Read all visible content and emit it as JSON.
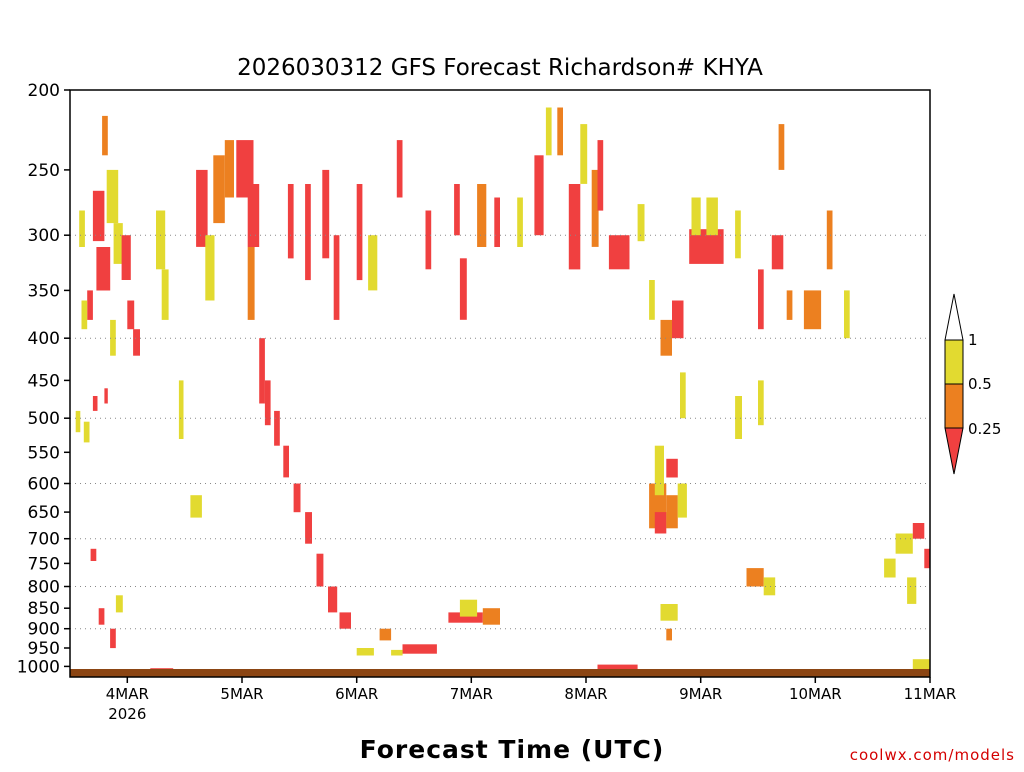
{
  "chart_data": {
    "type": "heatmap",
    "title": "2026030312 GFS Forecast Richardson# KHYA",
    "xlabel": "Forecast Time (UTC)",
    "ylabel": "",
    "y_ticks": [
      200,
      250,
      300,
      350,
      400,
      450,
      500,
      550,
      600,
      650,
      700,
      750,
      800,
      850,
      900,
      950,
      1000
    ],
    "y_gridlines": [
      300,
      400,
      500,
      600,
      700,
      800,
      900
    ],
    "y_range_hpa": [
      200,
      1030
    ],
    "x_ticks": [
      {
        "day": 4,
        "label": "4MAR",
        "sublabel": "2026"
      },
      {
        "day": 5,
        "label": "5MAR",
        "sublabel": ""
      },
      {
        "day": 6,
        "label": "6MAR",
        "sublabel": ""
      },
      {
        "day": 7,
        "label": "7MAR",
        "sublabel": ""
      },
      {
        "day": 8,
        "label": "8MAR",
        "sublabel": ""
      },
      {
        "day": 9,
        "label": "9MAR",
        "sublabel": ""
      },
      {
        "day": 10,
        "label": "10MAR",
        "sublabel": ""
      },
      {
        "day": 11,
        "label": "11MAR",
        "sublabel": ""
      }
    ],
    "x_range_days": [
      3.5,
      11.0
    ],
    "legend": {
      "placement": "right",
      "levels": [
        "0.25",
        "0.5",
        "1"
      ],
      "bins": [
        {
          "range": "< 0.25",
          "color": "#f04040"
        },
        {
          "range": "0.25 - 0.5",
          "color": "#ec8020"
        },
        {
          "range": "0.5 - 1",
          "color": "#e2da30"
        },
        {
          "range": "> 1",
          "color": "#ffffff"
        }
      ]
    },
    "colors": {
      "low": "#f04040",
      "mid": "#ec8020",
      "high": "#e2da30",
      "ground": "#8b4513"
    },
    "cells": [
      {
        "t": 3.7,
        "p": 265,
        "w": 0.1,
        "h": 40,
        "c": "low"
      },
      {
        "t": 3.73,
        "p": 310,
        "w": 0.12,
        "h": 40,
        "c": "low"
      },
      {
        "t": 3.78,
        "p": 215,
        "w": 0.05,
        "h": 25,
        "c": "mid"
      },
      {
        "t": 3.82,
        "p": 250,
        "w": 0.1,
        "h": 40,
        "c": "high"
      },
      {
        "t": 3.58,
        "p": 280,
        "w": 0.05,
        "h": 30,
        "c": "high"
      },
      {
        "t": 3.65,
        "p": 350,
        "w": 0.05,
        "h": 30,
        "c": "low"
      },
      {
        "t": 3.6,
        "p": 360,
        "w": 0.05,
        "h": 30,
        "c": "high"
      },
      {
        "t": 3.88,
        "p": 290,
        "w": 0.08,
        "h": 35,
        "c": "high"
      },
      {
        "t": 3.95,
        "p": 300,
        "w": 0.08,
        "h": 40,
        "c": "low"
      },
      {
        "t": 4.0,
        "p": 360,
        "w": 0.06,
        "h": 30,
        "c": "low"
      },
      {
        "t": 4.05,
        "p": 390,
        "w": 0.06,
        "h": 30,
        "c": "low"
      },
      {
        "t": 3.85,
        "p": 380,
        "w": 0.05,
        "h": 40,
        "c": "high"
      },
      {
        "t": 3.55,
        "p": 490,
        "w": 0.04,
        "h": 30,
        "c": "high"
      },
      {
        "t": 3.62,
        "p": 505,
        "w": 0.05,
        "h": 30,
        "c": "high"
      },
      {
        "t": 3.7,
        "p": 470,
        "w": 0.04,
        "h": 20,
        "c": "low"
      },
      {
        "t": 3.8,
        "p": 460,
        "w": 0.03,
        "h": 20,
        "c": "low"
      },
      {
        "t": 3.68,
        "p": 720,
        "w": 0.05,
        "h": 25,
        "c": "low"
      },
      {
        "t": 3.9,
        "p": 820,
        "w": 0.06,
        "h": 40,
        "c": "high"
      },
      {
        "t": 3.75,
        "p": 850,
        "w": 0.05,
        "h": 40,
        "c": "low"
      },
      {
        "t": 3.85,
        "p": 900,
        "w": 0.05,
        "h": 50,
        "c": "low"
      },
      {
        "t": 4.25,
        "p": 280,
        "w": 0.08,
        "h": 50,
        "c": "high"
      },
      {
        "t": 4.3,
        "p": 330,
        "w": 0.06,
        "h": 50,
        "c": "high"
      },
      {
        "t": 4.45,
        "p": 450,
        "w": 0.04,
        "h": 80,
        "c": "high"
      },
      {
        "t": 4.55,
        "p": 620,
        "w": 0.1,
        "h": 40,
        "c": "high"
      },
      {
        "t": 4.6,
        "p": 250,
        "w": 0.1,
        "h": 60,
        "c": "low"
      },
      {
        "t": 4.68,
        "p": 300,
        "w": 0.08,
        "h": 60,
        "c": "high"
      },
      {
        "t": 4.75,
        "p": 240,
        "w": 0.1,
        "h": 50,
        "c": "mid"
      },
      {
        "t": 4.85,
        "p": 230,
        "w": 0.08,
        "h": 40,
        "c": "mid"
      },
      {
        "t": 4.95,
        "p": 230,
        "w": 0.15,
        "h": 40,
        "c": "low"
      },
      {
        "t": 5.05,
        "p": 260,
        "w": 0.1,
        "h": 50,
        "c": "low"
      },
      {
        "t": 5.05,
        "p": 310,
        "w": 0.06,
        "h": 70,
        "c": "mid"
      },
      {
        "t": 5.15,
        "p": 400,
        "w": 0.05,
        "h": 80,
        "c": "low"
      },
      {
        "t": 5.2,
        "p": 450,
        "w": 0.05,
        "h": 60,
        "c": "low"
      },
      {
        "t": 5.28,
        "p": 490,
        "w": 0.05,
        "h": 50,
        "c": "low"
      },
      {
        "t": 5.36,
        "p": 540,
        "w": 0.05,
        "h": 50,
        "c": "low"
      },
      {
        "t": 5.45,
        "p": 600,
        "w": 0.06,
        "h": 50,
        "c": "low"
      },
      {
        "t": 5.55,
        "p": 650,
        "w": 0.06,
        "h": 60,
        "c": "low"
      },
      {
        "t": 5.65,
        "p": 730,
        "w": 0.06,
        "h": 70,
        "c": "low"
      },
      {
        "t": 5.75,
        "p": 800,
        "w": 0.08,
        "h": 60,
        "c": "low"
      },
      {
        "t": 5.85,
        "p": 860,
        "w": 0.1,
        "h": 40,
        "c": "low"
      },
      {
        "t": 5.4,
        "p": 260,
        "w": 0.05,
        "h": 60,
        "c": "low"
      },
      {
        "t": 5.55,
        "p": 260,
        "w": 0.05,
        "h": 80,
        "c": "low"
      },
      {
        "t": 5.7,
        "p": 250,
        "w": 0.06,
        "h": 70,
        "c": "low"
      },
      {
        "t": 5.8,
        "p": 300,
        "w": 0.05,
        "h": 80,
        "c": "low"
      },
      {
        "t": 6.0,
        "p": 260,
        "w": 0.05,
        "h": 80,
        "c": "low"
      },
      {
        "t": 6.1,
        "p": 300,
        "w": 0.08,
        "h": 50,
        "c": "high"
      },
      {
        "t": 6.35,
        "p": 230,
        "w": 0.05,
        "h": 40,
        "c": "low"
      },
      {
        "t": 6.6,
        "p": 280,
        "w": 0.05,
        "h": 50,
        "c": "low"
      },
      {
        "t": 6.85,
        "p": 260,
        "w": 0.05,
        "h": 40,
        "c": "low"
      },
      {
        "t": 6.9,
        "p": 320,
        "w": 0.06,
        "h": 60,
        "c": "low"
      },
      {
        "t": 7.05,
        "p": 260,
        "w": 0.08,
        "h": 50,
        "c": "mid"
      },
      {
        "t": 7.2,
        "p": 270,
        "w": 0.05,
        "h": 40,
        "c": "low"
      },
      {
        "t": 7.4,
        "p": 270,
        "w": 0.05,
        "h": 40,
        "c": "high"
      },
      {
        "t": 7.55,
        "p": 240,
        "w": 0.08,
        "h": 60,
        "c": "low"
      },
      {
        "t": 7.85,
        "p": 260,
        "w": 0.1,
        "h": 70,
        "c": "low"
      },
      {
        "t": 7.95,
        "p": 220,
        "w": 0.06,
        "h": 40,
        "c": "high"
      },
      {
        "t": 7.75,
        "p": 210,
        "w": 0.05,
        "h": 30,
        "c": "mid"
      },
      {
        "t": 7.65,
        "p": 210,
        "w": 0.05,
        "h": 30,
        "c": "high"
      },
      {
        "t": 8.05,
        "p": 250,
        "w": 0.06,
        "h": 60,
        "c": "mid"
      },
      {
        "t": 8.1,
        "p": 230,
        "w": 0.05,
        "h": 50,
        "c": "low"
      },
      {
        "t": 8.2,
        "p": 300,
        "w": 0.18,
        "h": 30,
        "c": "low"
      },
      {
        "t": 8.45,
        "p": 275,
        "w": 0.06,
        "h": 30,
        "c": "high"
      },
      {
        "t": 8.55,
        "p": 340,
        "w": 0.05,
        "h": 40,
        "c": "high"
      },
      {
        "t": 8.65,
        "p": 380,
        "w": 0.1,
        "h": 40,
        "c": "mid"
      },
      {
        "t": 8.75,
        "p": 360,
        "w": 0.1,
        "h": 40,
        "c": "low"
      },
      {
        "t": 8.82,
        "p": 440,
        "w": 0.05,
        "h": 60,
        "c": "high"
      },
      {
        "t": 8.9,
        "p": 295,
        "w": 0.3,
        "h": 30,
        "c": "low"
      },
      {
        "t": 8.92,
        "p": 270,
        "w": 0.08,
        "h": 30,
        "c": "high"
      },
      {
        "t": 9.05,
        "p": 270,
        "w": 0.1,
        "h": 30,
        "c": "high"
      },
      {
        "t": 9.3,
        "p": 280,
        "w": 0.05,
        "h": 40,
        "c": "high"
      },
      {
        "t": 9.5,
        "p": 330,
        "w": 0.05,
        "h": 60,
        "c": "low"
      },
      {
        "t": 9.62,
        "p": 300,
        "w": 0.1,
        "h": 30,
        "c": "low"
      },
      {
        "t": 9.68,
        "p": 220,
        "w": 0.05,
        "h": 30,
        "c": "mid"
      },
      {
        "t": 9.75,
        "p": 350,
        "w": 0.05,
        "h": 30,
        "c": "mid"
      },
      {
        "t": 9.9,
        "p": 350,
        "w": 0.15,
        "h": 40,
        "c": "mid"
      },
      {
        "t": 10.1,
        "p": 280,
        "w": 0.05,
        "h": 50,
        "c": "mid"
      },
      {
        "t": 10.25,
        "p": 350,
        "w": 0.05,
        "h": 50,
        "c": "high"
      },
      {
        "t": 8.55,
        "p": 600,
        "w": 0.15,
        "h": 80,
        "c": "mid"
      },
      {
        "t": 8.6,
        "p": 650,
        "w": 0.1,
        "h": 40,
        "c": "low"
      },
      {
        "t": 8.7,
        "p": 620,
        "w": 0.1,
        "h": 60,
        "c": "mid"
      },
      {
        "t": 8.8,
        "p": 600,
        "w": 0.08,
        "h": 60,
        "c": "high"
      },
      {
        "t": 8.7,
        "p": 560,
        "w": 0.1,
        "h": 30,
        "c": "low"
      },
      {
        "t": 8.6,
        "p": 540,
        "w": 0.08,
        "h": 80,
        "c": "high"
      },
      {
        "t": 9.3,
        "p": 470,
        "w": 0.06,
        "h": 60,
        "c": "high"
      },
      {
        "t": 9.5,
        "p": 450,
        "w": 0.05,
        "h": 60,
        "c": "high"
      },
      {
        "t": 9.4,
        "p": 760,
        "w": 0.15,
        "h": 40,
        "c": "mid"
      },
      {
        "t": 9.55,
        "p": 780,
        "w": 0.1,
        "h": 40,
        "c": "high"
      },
      {
        "t": 8.65,
        "p": 840,
        "w": 0.15,
        "h": 40,
        "c": "high"
      },
      {
        "t": 8.7,
        "p": 900,
        "w": 0.05,
        "h": 30,
        "c": "mid"
      },
      {
        "t": 10.7,
        "p": 690,
        "w": 0.15,
        "h": 40,
        "c": "high"
      },
      {
        "t": 10.85,
        "p": 670,
        "w": 0.1,
        "h": 30,
        "c": "low"
      },
      {
        "t": 10.95,
        "p": 720,
        "w": 0.05,
        "h": 40,
        "c": "low"
      },
      {
        "t": 10.8,
        "p": 780,
        "w": 0.08,
        "h": 60,
        "c": "high"
      },
      {
        "t": 10.6,
        "p": 740,
        "w": 0.1,
        "h": 40,
        "c": "high"
      },
      {
        "t": 6.4,
        "p": 940,
        "w": 0.3,
        "h": 25,
        "c": "low"
      },
      {
        "t": 6.3,
        "p": 955,
        "w": 0.1,
        "h": 15,
        "c": "high"
      },
      {
        "t": 6.8,
        "p": 860,
        "w": 0.3,
        "h": 25,
        "c": "low"
      },
      {
        "t": 6.9,
        "p": 830,
        "w": 0.15,
        "h": 40,
        "c": "high"
      },
      {
        "t": 7.1,
        "p": 850,
        "w": 0.15,
        "h": 40,
        "c": "mid"
      },
      {
        "t": 6.0,
        "p": 950,
        "w": 0.15,
        "h": 20,
        "c": "high"
      },
      {
        "t": 6.2,
        "p": 900,
        "w": 0.1,
        "h": 30,
        "c": "mid"
      },
      {
        "t": 4.2,
        "p": 1005,
        "w": 0.2,
        "h": 20,
        "c": "low"
      },
      {
        "t": 3.8,
        "p": 1010,
        "w": 0.2,
        "h": 20,
        "c": "low"
      },
      {
        "t": 3.55,
        "p": 1018,
        "w": 0.25,
        "h": 15,
        "c": "low"
      },
      {
        "t": 5.8,
        "p": 1015,
        "w": 0.4,
        "h": 15,
        "c": "low"
      },
      {
        "t": 6.6,
        "p": 1012,
        "w": 1.2,
        "h": 15,
        "c": "low"
      },
      {
        "t": 7.8,
        "p": 1010,
        "w": 0.8,
        "h": 15,
        "c": "low"
      },
      {
        "t": 8.1,
        "p": 995,
        "w": 0.35,
        "h": 25,
        "c": "low"
      },
      {
        "t": 8.7,
        "p": 1008,
        "w": 0.4,
        "h": 15,
        "c": "low"
      },
      {
        "t": 9.6,
        "p": 1012,
        "w": 0.4,
        "h": 15,
        "c": "low"
      },
      {
        "t": 10.3,
        "p": 1008,
        "w": 0.6,
        "h": 15,
        "c": "low"
      },
      {
        "t": 4.5,
        "p": 1020,
        "w": 0.5,
        "h": 12,
        "c": "high"
      },
      {
        "t": 5.3,
        "p": 1022,
        "w": 0.5,
        "h": 10,
        "c": "mid"
      },
      {
        "t": 10.85,
        "p": 980,
        "w": 0.15,
        "h": 30,
        "c": "high"
      }
    ]
  },
  "credit": "coolwx.com/models"
}
